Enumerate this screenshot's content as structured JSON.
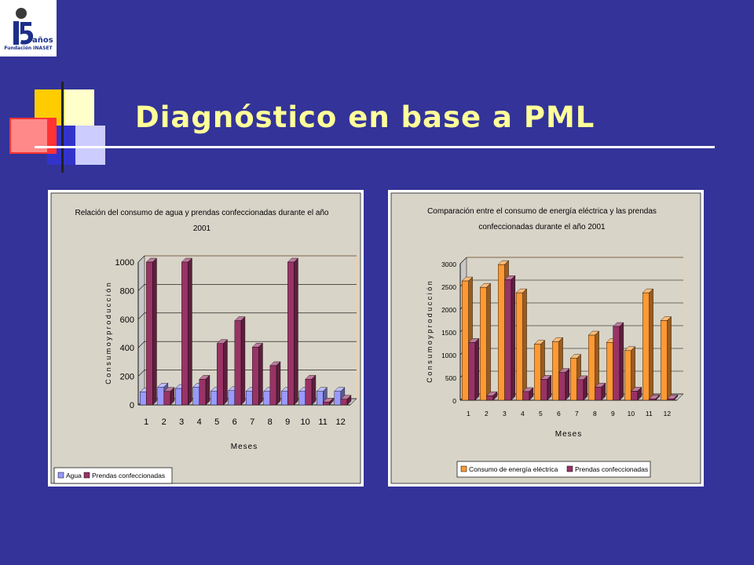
{
  "logo": {
    "number": "15",
    "anios": "años",
    "caption": "Fundación INASET"
  },
  "slide": {
    "title": "Diagnóstico en base a PML"
  },
  "colors": {
    "background": "#333399",
    "title": "#ffff99",
    "plot_area": "#d8d4c8",
    "agua": "#9999ff",
    "prendas": "#993366",
    "energia": "#ff9933"
  },
  "chart_data": [
    {
      "type": "bar",
      "title_lines": [
        "Relación del consumo de agua y prendas confeccionadas durante el año",
        "2001"
      ],
      "xlabel": "Meses",
      "ylabel": "C o n s u m o   y   p r o d u c c i ó n",
      "categories": [
        "1",
        "2",
        "3",
        "4",
        "5",
        "6",
        "7",
        "8",
        "9",
        "10",
        "11",
        "12"
      ],
      "ylim": [
        0,
        1000
      ],
      "yticks": [
        "0",
        "200",
        "400",
        "600",
        "800",
        "1000"
      ],
      "grid": true,
      "legend_position": "bottom-left",
      "series": [
        {
          "name": "Agua",
          "color": "#9999ff",
          "values": [
            90,
            125,
            115,
            125,
            95,
            100,
            95,
            95,
            95,
            95,
            95,
            95
          ]
        },
        {
          "name": "Prendas confeccionadas",
          "color": "#993366",
          "values": [
            1000,
            95,
            1000,
            180,
            430,
            590,
            405,
            275,
            1000,
            180,
            20,
            40
          ]
        }
      ]
    },
    {
      "type": "bar",
      "title_lines": [
        "Comparación entre el consumo de energía eléctrica y las prendas",
        "confeccionadas durante el año 2001"
      ],
      "xlabel": "Meses",
      "ylabel": "C o n s u m o   y   p r o d u c c i ó n",
      "categories": [
        "1",
        "2",
        "3",
        "4",
        "5",
        "6",
        "7",
        "8",
        "9",
        "10",
        "11",
        "12"
      ],
      "ylim": [
        0,
        3000
      ],
      "yticks": [
        "0",
        "500",
        "1000",
        "1500",
        "2000",
        "2500",
        "3000"
      ],
      "grid": true,
      "legend_position": "bottom-left",
      "series": [
        {
          "name": "Consumo de energía eléctrica",
          "color": "#ff9933",
          "values": [
            2620,
            2480,
            2980,
            2360,
            1230,
            1290,
            920,
            1430,
            1270,
            1090,
            2360,
            1750
          ]
        },
        {
          "name": "Prendas confeccionadas",
          "color": "#993366",
          "values": [
            1270,
            100,
            2650,
            190,
            460,
            610,
            450,
            290,
            1620,
            200,
            30,
            30
          ]
        }
      ]
    }
  ]
}
